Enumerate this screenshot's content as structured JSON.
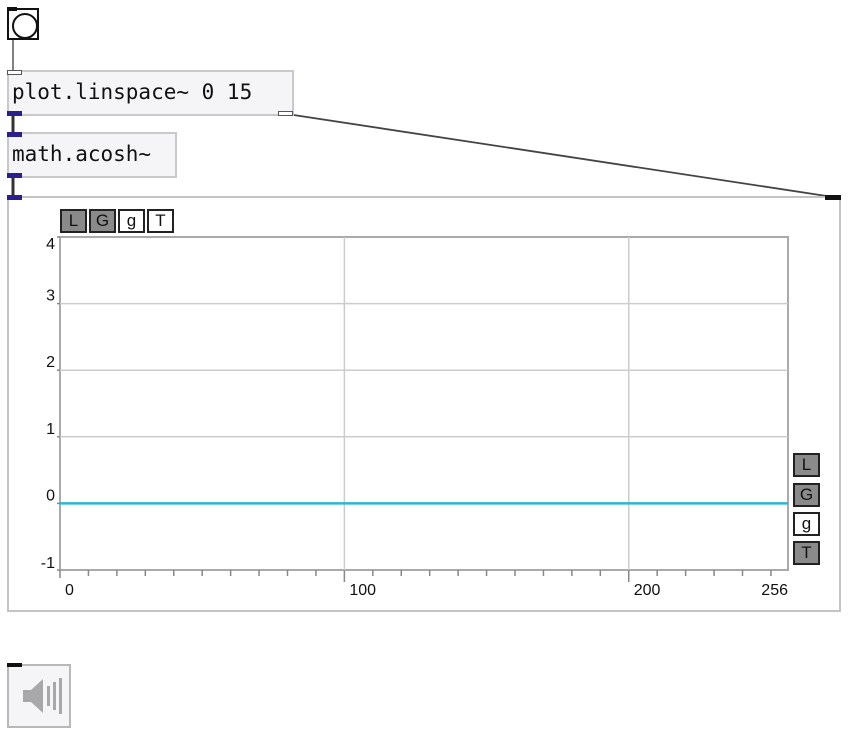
{
  "bang": {
    "name": "bang"
  },
  "objects": {
    "linspace": {
      "text": "plot.linspace~ 0 15"
    },
    "acosh": {
      "text": "math.acosh~"
    }
  },
  "plot": {
    "toolbar_top": [
      {
        "label": "L",
        "state": "on"
      },
      {
        "label": "G",
        "state": "on"
      },
      {
        "label": "g",
        "state": "off"
      },
      {
        "label": "T",
        "state": "off"
      }
    ],
    "toolbar_side": [
      {
        "label": "L",
        "state": "on"
      },
      {
        "label": "G",
        "state": "on"
      },
      {
        "label": "g",
        "state": "off"
      },
      {
        "label": "T",
        "state": "on"
      }
    ]
  },
  "chart_data": {
    "type": "line",
    "x": [
      0,
      256
    ],
    "series": [
      {
        "values": [
          0,
          0
        ],
        "color": "#2bb6d4"
      }
    ],
    "xlim": [
      0,
      256
    ],
    "ylim": [
      -1,
      4
    ],
    "x_ticks": [
      0,
      100,
      200,
      256
    ],
    "y_ticks": [
      4,
      3,
      2,
      1,
      0,
      -1
    ],
    "x_major_gridlines": [
      100,
      200
    ],
    "y_major_gridlines": [
      3,
      2,
      1
    ],
    "x_minor_tick_step": 10,
    "grid": true,
    "line_color": "#2bb6d4"
  },
  "dac": {
    "icon": "speaker-icon"
  }
}
